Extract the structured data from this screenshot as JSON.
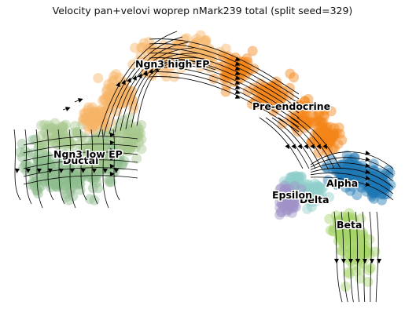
{
  "chart_data": {
    "type": "scatter",
    "title": "Velocity pan+velovi woprep nMark239 total (split seed=329)",
    "xlabel": "",
    "ylabel": "",
    "grid": false,
    "axes_visible": false,
    "overlay": "velocity streamlines (black, with arrowheads)",
    "clusters": [
      {
        "name": "Ductal",
        "color": "#8fbc8f"
      },
      {
        "name": "Ngn3 low EP",
        "color": "#a6c88e"
      },
      {
        "name": "Ngn3 high EP",
        "color": "#f7b366"
      },
      {
        "name": "Pre-endocrine",
        "color": "#f58518"
      },
      {
        "name": "Alpha",
        "color": "#1f77b4"
      },
      {
        "name": "Beta",
        "color": "#a6d46a"
      },
      {
        "name": "Delta",
        "color": "#8ecfc9"
      },
      {
        "name": "Epsilon",
        "color": "#9f93c8"
      }
    ]
  }
}
